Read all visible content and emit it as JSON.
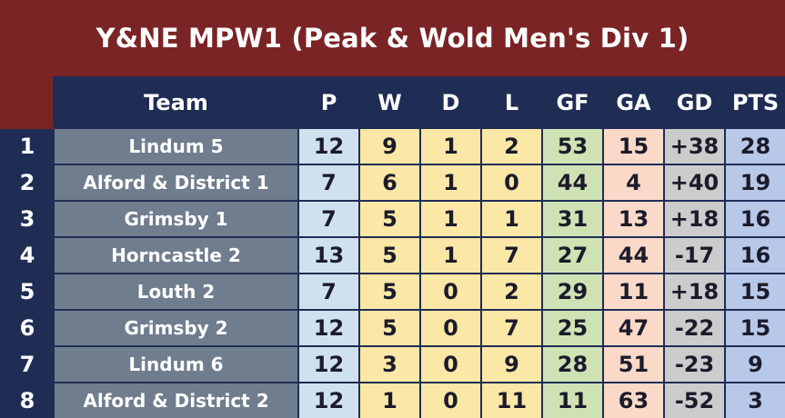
{
  "title": "Y&NE MPW1 (Peak & Wold Men's Div 1)",
  "colors": {
    "title_bar": "#7a2426",
    "header_bg": "#1f2d55",
    "team_bg": "#6f7d8e",
    "p_bg": "#cfe1ee",
    "wdl_bg": "#fbe7a6",
    "gf_bg": "#cfe2b4",
    "ga_bg": "#fbd9c8",
    "gd_bg": "#cccccc",
    "pts_bg": "#b7c8e8"
  },
  "columns": [
    "Team",
    "P",
    "W",
    "D",
    "L",
    "GF",
    "GA",
    "GD",
    "PTS"
  ],
  "rows": [
    {
      "pos": "1",
      "team": "Lindum 5",
      "p": "12",
      "w": "9",
      "d": "1",
      "l": "2",
      "gf": "53",
      "ga": "15",
      "gd": "+38",
      "pts": "28"
    },
    {
      "pos": "2",
      "team": "Alford & District 1",
      "p": "7",
      "w": "6",
      "d": "1",
      "l": "0",
      "gf": "44",
      "ga": "4",
      "gd": "+40",
      "pts": "19"
    },
    {
      "pos": "3",
      "team": "Grimsby 1",
      "p": "7",
      "w": "5",
      "d": "1",
      "l": "1",
      "gf": "31",
      "ga": "13",
      "gd": "+18",
      "pts": "16"
    },
    {
      "pos": "4",
      "team": "Horncastle 2",
      "p": "13",
      "w": "5",
      "d": "1",
      "l": "7",
      "gf": "27",
      "ga": "44",
      "gd": "-17",
      "pts": "16"
    },
    {
      "pos": "5",
      "team": "Louth 2",
      "p": "7",
      "w": "5",
      "d": "0",
      "l": "2",
      "gf": "29",
      "ga": "11",
      "gd": "+18",
      "pts": "15"
    },
    {
      "pos": "6",
      "team": "Grimsby 2",
      "p": "12",
      "w": "5",
      "d": "0",
      "l": "7",
      "gf": "25",
      "ga": "47",
      "gd": "-22",
      "pts": "15"
    },
    {
      "pos": "7",
      "team": "Lindum 6",
      "p": "12",
      "w": "3",
      "d": "0",
      "l": "9",
      "gf": "28",
      "ga": "51",
      "gd": "-23",
      "pts": "9"
    },
    {
      "pos": "8",
      "team": "Alford & District 2",
      "p": "12",
      "w": "1",
      "d": "0",
      "l": "11",
      "gf": "11",
      "ga": "63",
      "gd": "-52",
      "pts": "3"
    }
  ]
}
